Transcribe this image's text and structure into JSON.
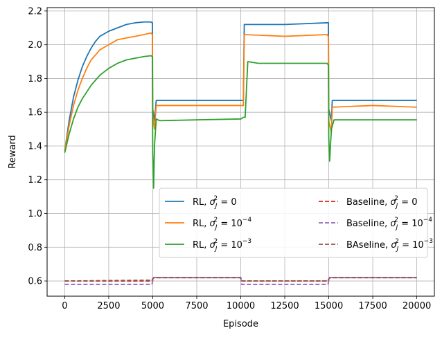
{
  "chart_data": {
    "type": "line",
    "xlabel": "Episode",
    "ylabel": "Reward",
    "xlim": [
      -1000,
      21000
    ],
    "ylim": [
      0.51,
      2.22
    ],
    "xticks": [
      0,
      2500,
      5000,
      7500,
      10000,
      12500,
      15000,
      17500,
      20000
    ],
    "xtick_labels": [
      "0",
      "2500",
      "5000",
      "7500",
      "10000",
      "12500",
      "15000",
      "17500",
      "20000"
    ],
    "yticks": [
      0.6,
      0.8,
      1.0,
      1.2,
      1.4,
      1.6,
      1.8,
      2.0,
      2.2
    ],
    "ytick_labels": [
      "0.6",
      "0.8",
      "1.0",
      "1.2",
      "1.4",
      "1.6",
      "1.8",
      "2.0",
      "2.2"
    ],
    "grid": true,
    "legend_placement": "lower-right",
    "series": [
      {
        "name": "RL, σ_J^2 = 0",
        "legend": {
          "prefix": "RL, ",
          "sup": "2",
          "suffix": " = 0",
          "exp": ""
        },
        "color": "#1f77b4",
        "style": "solid",
        "x": [
          0,
          250,
          500,
          750,
          1000,
          1250,
          1500,
          1750,
          2000,
          2500,
          3000,
          3500,
          4000,
          4500,
          4900,
          4980,
          5000,
          5100,
          5200,
          7500,
          10000,
          10150,
          10200,
          12500,
          14900,
          14980,
          15000,
          15150,
          15200,
          17500,
          20000
        ],
        "y": [
          1.37,
          1.55,
          1.69,
          1.79,
          1.87,
          1.93,
          1.98,
          2.02,
          2.05,
          2.08,
          2.1,
          2.12,
          2.13,
          2.135,
          2.135,
          2.13,
          1.62,
          1.55,
          1.67,
          1.67,
          1.67,
          1.67,
          2.12,
          2.12,
          2.13,
          2.13,
          1.62,
          1.55,
          1.67,
          1.67,
          1.67
        ]
      },
      {
        "name": "RL, σ_J^2 = 10^-4",
        "legend": {
          "prefix": "RL, ",
          "sup": "2",
          "suffix": " = 10",
          "exp": "−4"
        },
        "color": "#ff7f0e",
        "style": "solid",
        "x": [
          0,
          250,
          500,
          750,
          1000,
          1250,
          1500,
          1750,
          2000,
          2500,
          3000,
          3500,
          4000,
          4500,
          4900,
          4980,
          5000,
          5100,
          5200,
          7500,
          10000,
          10150,
          10200,
          12500,
          14900,
          14980,
          15000,
          15150,
          15200,
          17500,
          20000
        ],
        "y": [
          1.37,
          1.52,
          1.64,
          1.73,
          1.8,
          1.86,
          1.91,
          1.94,
          1.97,
          2.0,
          2.03,
          2.04,
          2.05,
          2.06,
          2.07,
          2.06,
          1.58,
          1.5,
          1.64,
          1.64,
          1.64,
          1.64,
          2.06,
          2.05,
          2.06,
          2.05,
          1.55,
          1.48,
          1.63,
          1.64,
          1.63
        ]
      },
      {
        "name": "RL, σ_J^2 = 10^-3",
        "legend": {
          "prefix": "RL, ",
          "sup": "2",
          "suffix": " = 10",
          "exp": "−3"
        },
        "color": "#2ca02c",
        "style": "solid",
        "x": [
          0,
          250,
          500,
          750,
          1000,
          1250,
          1500,
          1750,
          2000,
          2500,
          3000,
          3500,
          4000,
          4500,
          4900,
          4980,
          5000,
          5050,
          5100,
          5200,
          5400,
          7500,
          10000,
          10150,
          10250,
          10400,
          11000,
          12500,
          14900,
          14980,
          15000,
          15050,
          15150,
          15300,
          17500,
          20000
        ],
        "y": [
          1.36,
          1.47,
          1.56,
          1.63,
          1.68,
          1.72,
          1.76,
          1.79,
          1.82,
          1.86,
          1.89,
          1.91,
          1.92,
          1.93,
          1.935,
          1.93,
          1.36,
          1.15,
          1.4,
          1.56,
          1.55,
          1.555,
          1.56,
          1.57,
          1.57,
          1.9,
          1.89,
          1.89,
          1.89,
          1.88,
          1.45,
          1.31,
          1.5,
          1.555,
          1.555,
          1.555
        ]
      },
      {
        "name": "Baseline, σ_J^2 = 0",
        "legend": {
          "prefix": "Baseline, ",
          "sup": "2",
          "suffix": " = 0",
          "exp": ""
        },
        "color": "#d62728",
        "style": "dashed",
        "x": [
          0,
          4950,
          5050,
          10000,
          10050,
          14950,
          15050,
          20000
        ],
        "y": [
          0.6,
          0.6,
          0.62,
          0.62,
          0.6,
          0.6,
          0.62,
          0.62
        ]
      },
      {
        "name": "Baseline, σ_J^2 = 10^-4",
        "legend": {
          "prefix": "Baseline, ",
          "sup": "2",
          "suffix": " = 10",
          "exp": "−4"
        },
        "color": "#9467bd",
        "style": "dashed",
        "x": [
          0,
          4950,
          5050,
          10000,
          10050,
          14950,
          15050,
          20000
        ],
        "y": [
          0.58,
          0.58,
          0.62,
          0.62,
          0.58,
          0.58,
          0.62,
          0.62
        ]
      },
      {
        "name": "BAseline, σ_J^2 = 10^-3",
        "legend": {
          "prefix": "BAseline, ",
          "sup": "2",
          "suffix": " = 10",
          "exp": "−3"
        },
        "color": "#8c564b",
        "style": "dashed",
        "x": [
          0,
          4950,
          5050,
          10000,
          10050,
          14950,
          15050,
          20000
        ],
        "y": [
          0.6,
          0.605,
          0.62,
          0.62,
          0.6,
          0.6,
          0.62,
          0.62
        ]
      }
    ]
  }
}
